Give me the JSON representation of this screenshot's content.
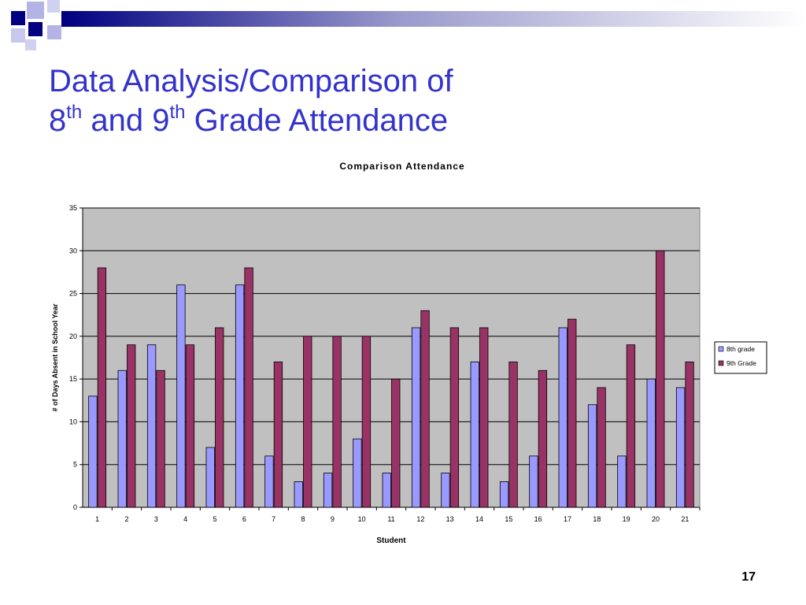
{
  "slide": {
    "title_line1": "Data Analysis/Comparison of",
    "title_line2_num1": "8",
    "title_line2_sup1": "th",
    "title_line2_mid": " and 9",
    "title_line2_sup2": "th",
    "title_line2_end": " Grade Attendance",
    "page_number": "17",
    "colors": {
      "title": "#3333cc",
      "decor_dark": "#000080",
      "decor_light": "#b0b0e0"
    }
  },
  "chart_data": {
    "type": "bar",
    "title": "Comparison Attendance",
    "xlabel": "Student",
    "ylabel": "# of Days Absent in School Year",
    "categories": [
      "1",
      "2",
      "3",
      "4",
      "5",
      "6",
      "7",
      "8",
      "9",
      "10",
      "11",
      "12",
      "13",
      "14",
      "15",
      "16",
      "17",
      "18",
      "19",
      "20",
      "21"
    ],
    "series": [
      {
        "name": "8th grade",
        "color": "#9999ff",
        "values": [
          13,
          16,
          19,
          26,
          7,
          26,
          6,
          3,
          4,
          8,
          4,
          21,
          4,
          17,
          3,
          6,
          21,
          12,
          6,
          15,
          14
        ]
      },
      {
        "name": "9th Grade",
        "color": "#993366",
        "values": [
          28,
          19,
          16,
          19,
          21,
          28,
          17,
          20,
          20,
          20,
          15,
          23,
          21,
          21,
          17,
          16,
          22,
          14,
          19,
          30,
          17
        ]
      }
    ],
    "ylim": [
      0,
      35
    ],
    "yticks": [
      0,
      5,
      10,
      15,
      20,
      25,
      30,
      35
    ],
    "grid": true,
    "plot_background": "#c0c0c0",
    "legend_position": "right"
  }
}
